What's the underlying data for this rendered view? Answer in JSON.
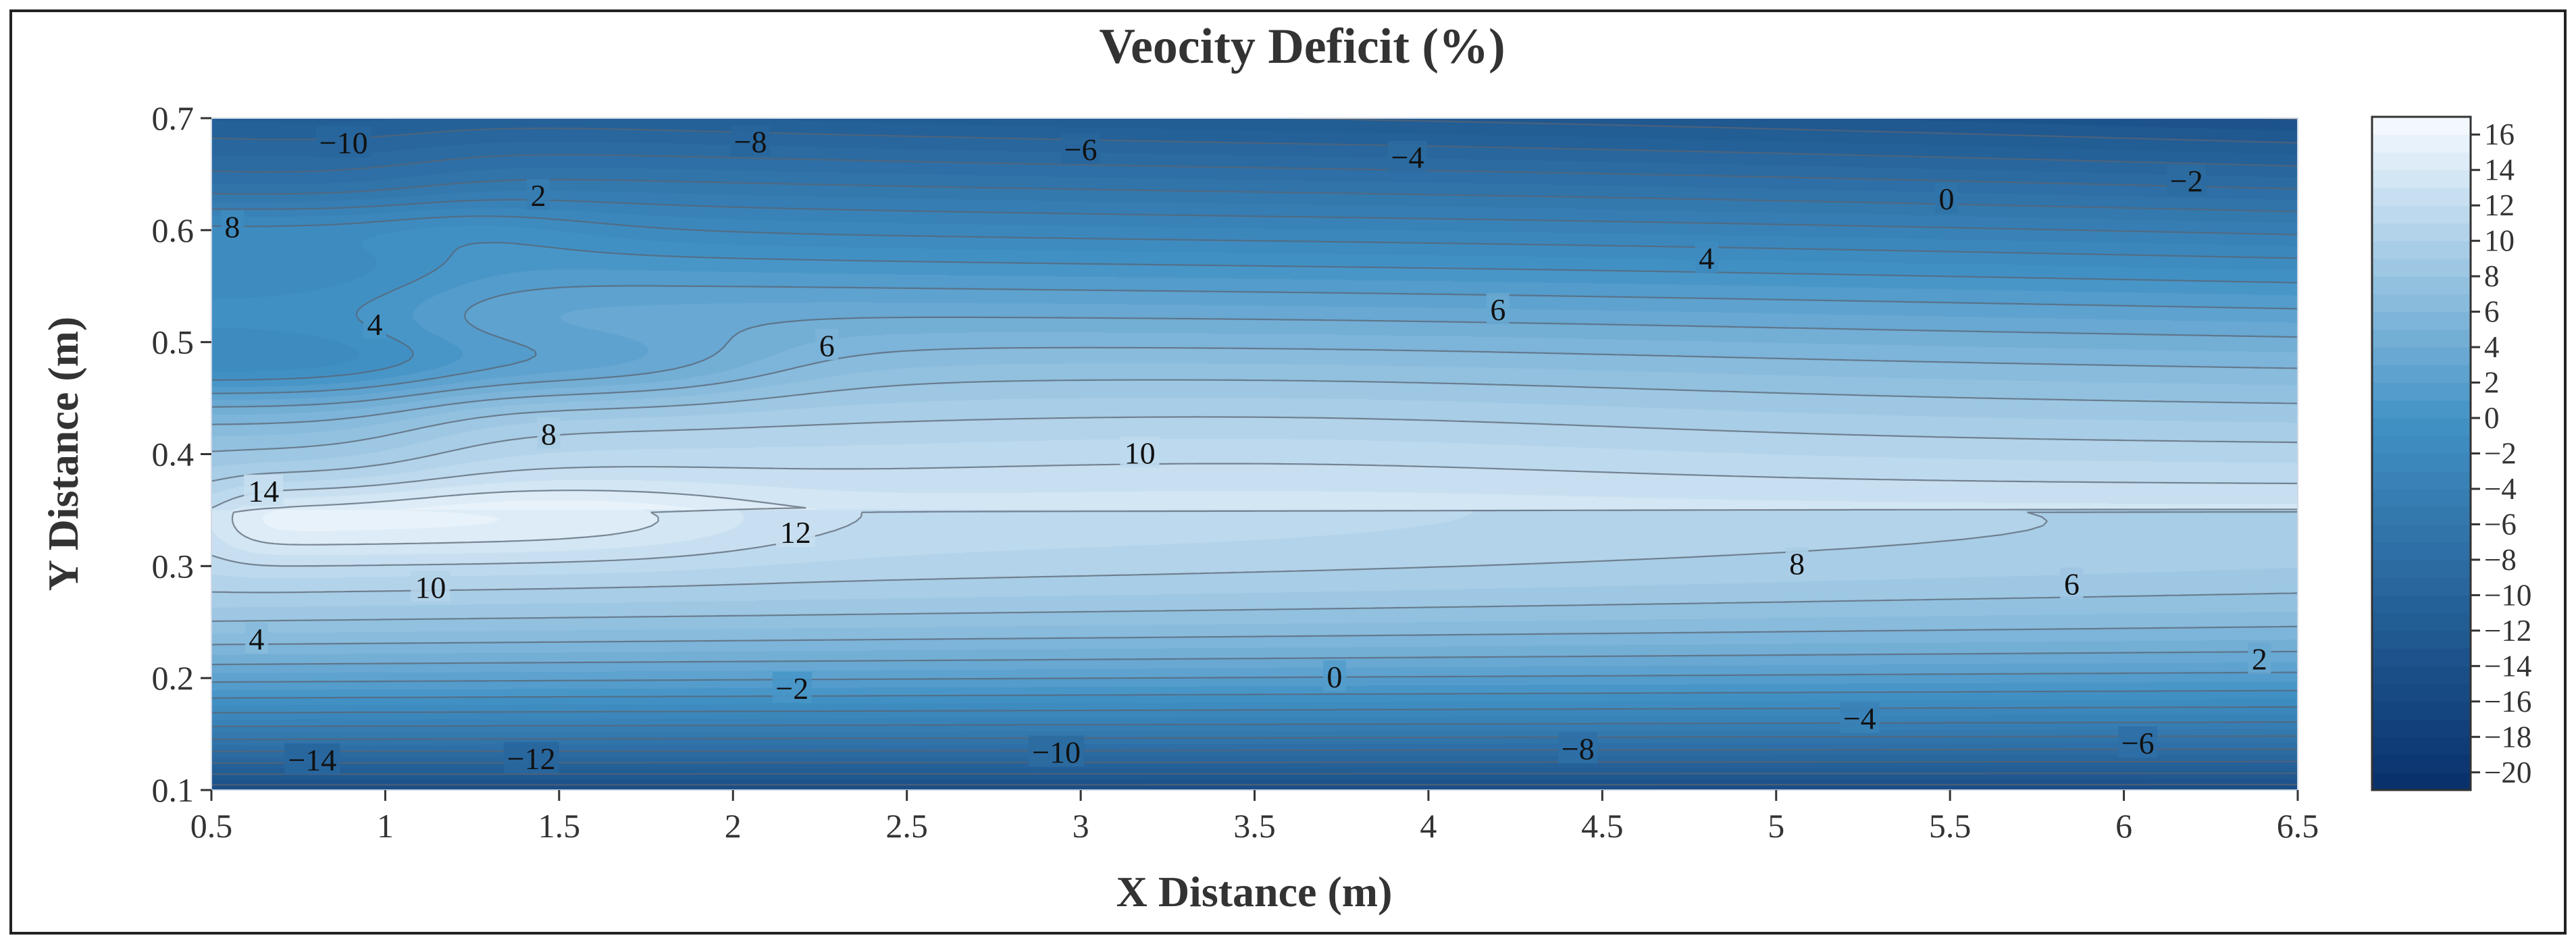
{
  "chart_data": {
    "type": "heatmap",
    "subtype": "filled-contour",
    "title": "Veocity Deficit (%)",
    "xlabel": "X Distance (m)",
    "ylabel": "Y Distance (m)",
    "xlim": [
      0.5,
      6.5
    ],
    "ylim": [
      0.1,
      0.7
    ],
    "x_ticks": [
      "0.5",
      "1",
      "1.5",
      "2",
      "2.5",
      "3",
      "3.5",
      "4",
      "4.5",
      "5",
      "5.5",
      "6",
      "6.5"
    ],
    "y_ticks": [
      "0.1",
      "0.2",
      "0.3",
      "0.4",
      "0.5",
      "0.6",
      "0.7"
    ],
    "colorbar": {
      "min": -21,
      "max": 17,
      "ticks": [
        "16",
        "14",
        "12",
        "10",
        "8",
        "6",
        "4",
        "2",
        "0",
        "−2",
        "−4",
        "−6",
        "−8",
        "−10",
        "−12",
        "−14",
        "−16",
        "−18",
        "−20"
      ],
      "levels": [
        -21,
        -20,
        -19,
        -18,
        -17,
        -16,
        -15,
        -14,
        -13,
        -12,
        -11,
        -10,
        -9,
        -8,
        -7,
        -6,
        -5,
        -4,
        -3,
        -2,
        -1,
        0,
        1,
        2,
        3,
        4,
        5,
        6,
        7,
        8,
        9,
        10,
        11,
        12,
        13,
        14,
        15,
        16,
        17
      ],
      "colors_low_to_high": [
        "#08306b",
        "#f7fbff"
      ]
    },
    "contour_labels": [
      {
        "text": "−10",
        "x": 0.88,
        "y": 0.677
      },
      {
        "text": "−8",
        "x": 2.05,
        "y": 0.678
      },
      {
        "text": "−6",
        "x": 3.0,
        "y": 0.671
      },
      {
        "text": "−4",
        "x": 3.94,
        "y": 0.664
      },
      {
        "text": "−2",
        "x": 6.18,
        "y": 0.643
      },
      {
        "text": "0",
        "x": 5.49,
        "y": 0.627
      },
      {
        "text": "2",
        "x": 1.44,
        "y": 0.63
      },
      {
        "text": "8",
        "x": 0.56,
        "y": 0.602
      },
      {
        "text": "4",
        "x": 4.8,
        "y": 0.574
      },
      {
        "text": "6",
        "x": 4.2,
        "y": 0.528
      },
      {
        "text": "4",
        "x": 0.97,
        "y": 0.515
      },
      {
        "text": "6",
        "x": 2.27,
        "y": 0.496
      },
      {
        "text": "8",
        "x": 1.47,
        "y": 0.417
      },
      {
        "text": "10",
        "x": 3.17,
        "y": 0.4
      },
      {
        "text": "14",
        "x": 0.65,
        "y": 0.366
      },
      {
        "text": "12",
        "x": 2.18,
        "y": 0.329
      },
      {
        "text": "8",
        "x": 5.06,
        "y": 0.301
      },
      {
        "text": "6",
        "x": 5.85,
        "y": 0.283
      },
      {
        "text": "10",
        "x": 1.13,
        "y": 0.28
      },
      {
        "text": "4",
        "x": 0.63,
        "y": 0.234
      },
      {
        "text": "2",
        "x": 6.39,
        "y": 0.216
      },
      {
        "text": "0",
        "x": 3.73,
        "y": 0.2
      },
      {
        "text": "−2",
        "x": 2.17,
        "y": 0.19
      },
      {
        "text": "−4",
        "x": 5.24,
        "y": 0.163
      },
      {
        "text": "−6",
        "x": 6.04,
        "y": 0.141
      },
      {
        "text": "−8",
        "x": 4.43,
        "y": 0.136
      },
      {
        "text": "−10",
        "x": 2.93,
        "y": 0.133
      },
      {
        "text": "−12",
        "x": 1.42,
        "y": 0.127
      },
      {
        "text": "−14",
        "x": 0.79,
        "y": 0.126
      }
    ],
    "legend": "colorbar right",
    "grid": false
  }
}
